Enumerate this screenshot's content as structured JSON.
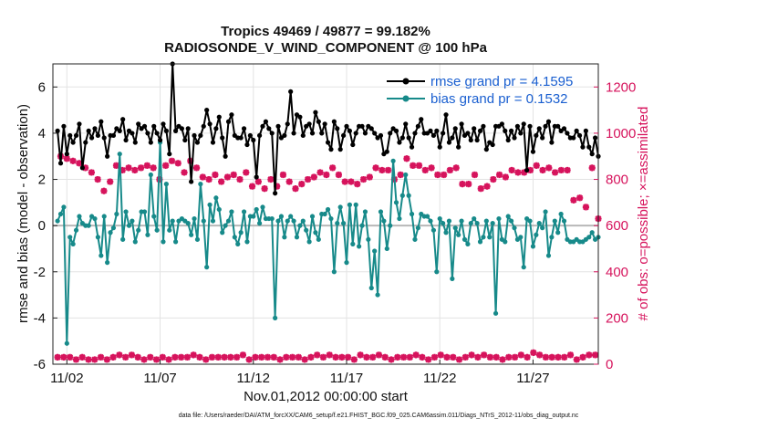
{
  "title_line1": "Tropics 49469 / 49877 = 99.182%",
  "title_line2": "RADIOSONDE_V_WIND_COMPONENT @ 100 hPa",
  "footer": "data file: /Users/raeder/DAI/ATM_forcXX/CAM6_setup/f.e21.FHIST_BGC.f09_025.CAM6assim.011/Diags_NTrS_2012-11/obs_diag_output.nc",
  "colors": {
    "rmse": "#000000",
    "bias": "#178a8a",
    "obs": "#d6135c",
    "zero": "#b8b8b8"
  },
  "chart_data": {
    "type": "line",
    "xlabel": "Nov.01,2012 00:00:00 start",
    "ylabel_left": "rmse and bias (model - observation)",
    "ylabel_right": "# of obs: o=possible; ×=assimilated",
    "x_ticks": [
      "11/02",
      "11/07",
      "11/12",
      "11/17",
      "11/22",
      "11/27"
    ],
    "x_tick_positions": [
      1.5,
      6.5,
      11.5,
      16.5,
      21.5,
      26.5
    ],
    "xlim": [
      0.75,
      30.0
    ],
    "ylim_left": [
      -6,
      7
    ],
    "left_ticks": [
      -6,
      -4,
      -2,
      0,
      2,
      4,
      6
    ],
    "ylim_right": [
      0,
      1300
    ],
    "right_ticks": [
      0,
      200,
      400,
      600,
      800,
      1000,
      1200
    ],
    "legend": [
      {
        "label": "rmse grand pr = 4.1595",
        "series": "rmse"
      },
      {
        "label": "bias grand pr = 0.1532",
        "series": "bias"
      }
    ],
    "series": [
      {
        "name": "rmse",
        "axis": "left",
        "values": [
          4.1,
          2.7,
          4.3,
          3.1,
          3.9,
          3.6,
          3.9,
          4.4,
          2.5,
          3.6,
          4.1,
          3.8,
          4.2,
          3.9,
          4.5,
          3.8,
          3.0,
          3.9,
          3.9,
          4.2,
          4.1,
          4.6,
          3.7,
          4.1,
          4.0,
          3.6,
          4.4,
          4.2,
          4.3,
          4.0,
          3.6,
          4.3,
          4.0,
          3.7,
          4.4,
          4.1,
          3.1,
          7.0,
          4.1,
          4.3,
          4.2,
          3.7,
          4.2,
          1.9,
          3.9,
          3.6,
          3.9,
          4.3,
          5.0,
          4.4,
          3.6,
          4.2,
          4.7,
          3.8,
          3.0,
          4.5,
          4.8,
          3.9,
          3.8,
          3.8,
          4.2,
          3.5,
          3.9,
          3.7,
          2.1,
          3.9,
          4.3,
          4.5,
          4.2,
          4.0,
          1.4,
          4.3,
          3.8,
          3.9,
          4.4,
          5.8,
          4.0,
          4.8,
          4.7,
          3.9,
          4.3,
          4.4,
          4.0,
          4.9,
          4.5,
          4.0,
          4.4,
          3.6,
          3.3,
          4.5,
          4.2,
          3.3,
          3.9,
          4.3,
          4.1,
          3.5,
          4.0,
          4.3,
          4.3,
          4.0,
          4.3,
          4.2,
          4.0,
          3.8,
          3.9,
          3.1,
          3.2,
          4.0,
          4.2,
          4.1,
          3.6,
          3.8,
          4.4,
          3.8,
          3.4,
          4.0,
          4.3,
          4.6,
          4.0,
          4.0,
          4.1,
          3.9,
          4.1,
          3.4,
          4.0,
          4.8,
          3.6,
          3.8,
          4.2,
          3.4,
          4.4,
          3.9,
          4.0,
          3.7,
          4.2,
          3.7,
          4.1,
          4.3,
          3.3,
          3.6,
          3.5,
          4.3,
          4.3,
          4.4,
          4.1,
          3.7,
          4.1,
          3.8,
          4.3,
          4.0,
          4.4,
          2.4,
          4.3,
          3.2,
          3.9,
          4.2,
          3.8,
          4.3,
          4.5,
          3.6,
          4.3,
          4.3,
          4.1,
          4.2,
          4.0,
          3.8,
          3.8,
          4.1,
          3.9,
          3.4,
          4.1,
          3.4,
          3.1,
          3.8,
          3.0
        ]
      },
      {
        "name": "bias",
        "axis": "left",
        "values": [
          0.2,
          0.5,
          0.8,
          -5.1,
          -0.5,
          -0.8,
          -0.2,
          0.4,
          0.1,
          0.0,
          0.0,
          0.4,
          0.3,
          -0.5,
          -1.3,
          0.4,
          -1.6,
          -0.3,
          -0.1,
          0.5,
          3.1,
          -0.6,
          0.6,
          0.0,
          0.2,
          -0.7,
          -0.2,
          0.6,
          0.6,
          -0.4,
          2.2,
          0.4,
          -0.2,
          3.6,
          -0.7,
          1.8,
          -0.2,
          0.2,
          -0.7,
          0.2,
          0.3,
          0.2,
          0.1,
          -0.4,
          0.3,
          -0.6,
          1.8,
          0.2,
          -1.8,
          0.9,
          0.2,
          1.2,
          0.7,
          -0.3,
          0.0,
          0.2,
          0.6,
          -0.5,
          -0.8,
          -0.3,
          0.6,
          -0.7,
          0.4,
          0.4,
          0.7,
          0.1,
          0.8,
          0.3,
          0.3,
          0.3,
          -4.0,
          0.2,
          0.4,
          -0.5,
          0.2,
          0.4,
          0.2,
          -0.5,
          0.0,
          0.2,
          -0.2,
          -0.7,
          0.4,
          -0.3,
          -0.6,
          0.5,
          0.5,
          0.7,
          0.3,
          -2.0,
          0.1,
          0.8,
          0.1,
          -1.6,
          0.9,
          -0.8,
          0.9,
          -0.9,
          0.0,
          0.6,
          -0.6,
          -2.7,
          -1.1,
          -3.0,
          0.6,
          0.2,
          -1.0,
          0.0,
          2.8,
          1.0,
          0.3,
          1.3,
          2.2,
          1.3,
          0.5,
          -0.6,
          -0.1,
          0.5,
          0.4,
          0.4,
          0.2,
          -0.2,
          -2.0,
          0.3,
          0.1,
          -0.3,
          0.2,
          -2.3,
          -0.1,
          -0.4,
          0.2,
          -0.6,
          -0.8,
          0.1,
          0.3,
          0.1,
          -0.7,
          -0.5,
          0.2,
          -0.5,
          0.1,
          -3.8,
          0.3,
          -0.6,
          -0.7,
          0.4,
          0.2,
          -0.1,
          -0.6,
          -0.5,
          -1.8,
          0.3,
          0.2,
          -0.9,
          -0.4,
          0.1,
          -0.1,
          0.6,
          -1.3,
          -0.5,
          0.2,
          -0.3,
          0.5,
          0.2,
          -0.6,
          -0.7,
          -0.7,
          -0.6,
          -0.7,
          -0.7,
          -0.6,
          -0.5,
          -0.3,
          -0.6,
          -0.5
        ]
      },
      {
        "name": "obs_count",
        "axis": "right",
        "values": [
          30,
          900,
          30,
          890,
          30,
          880,
          20,
          870,
          30,
          850,
          20,
          830,
          20,
          800,
          30,
          750,
          20,
          790,
          30,
          860,
          40,
          840,
          30,
          850,
          40,
          840,
          30,
          850,
          20,
          860,
          30,
          850,
          20,
          800,
          30,
          860,
          20,
          880,
          30,
          870,
          30,
          830,
          30,
          880,
          40,
          850,
          30,
          810,
          20,
          800,
          30,
          820,
          30,
          790,
          30,
          810,
          30,
          820,
          30,
          800,
          40,
          830,
          20,
          770,
          30,
          790,
          30,
          760,
          30,
          800,
          30,
          770,
          20,
          820,
          30,
          790,
          30,
          760,
          30,
          780,
          20,
          800,
          30,
          810,
          40,
          830,
          30,
          820,
          40,
          850,
          30,
          820,
          30,
          790,
          30,
          790,
          20,
          780,
          40,
          800,
          30,
          810,
          30,
          850,
          40,
          840,
          30,
          840,
          20,
          800,
          30,
          820,
          30,
          890,
          30,
          860,
          40,
          860,
          30,
          840,
          20,
          850,
          30,
          820,
          40,
          820,
          30,
          840,
          30,
          850,
          20,
          780,
          30,
          780,
          40,
          820,
          30,
          760,
          40,
          770,
          30,
          800,
          30,
          820,
          20,
          810,
          30,
          840,
          30,
          830,
          40,
          830,
          30,
          840,
          50,
          860,
          40,
          840,
          30,
          850,
          30,
          830,
          30,
          840,
          30,
          840,
          40,
          710,
          20,
          720,
          30,
          680,
          40,
          850,
          40,
          630
        ]
      }
    ]
  }
}
